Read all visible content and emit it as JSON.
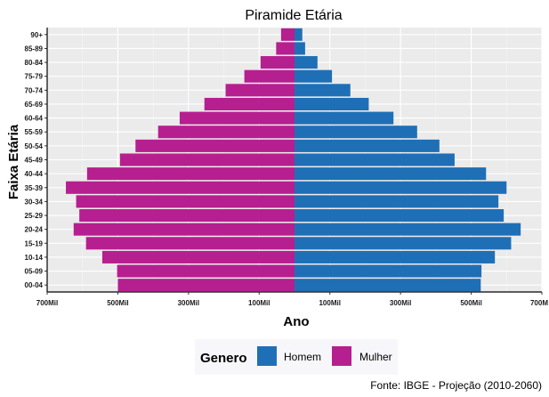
{
  "chart_data": {
    "type": "bar",
    "orientation": "horizontal",
    "title": "Piramide Etária",
    "xlabel": "Ano",
    "ylabel": "Faixa Etária",
    "caption": "Fonte: IBGE - Projeção (2010-2060)",
    "legend_title": "Genero",
    "legend_position": "bottom",
    "grid": true,
    "xlim": [
      -700000,
      700000
    ],
    "x_ticks": [
      {
        "value": -700000,
        "label": "700Mil"
      },
      {
        "value": -500000,
        "label": "500Mil"
      },
      {
        "value": -300000,
        "label": "300Mil"
      },
      {
        "value": -100000,
        "label": "100Mil"
      },
      {
        "value": 100000,
        "label": "100Mil"
      },
      {
        "value": 300000,
        "label": "300Mil"
      },
      {
        "value": 500000,
        "label": "500Mil"
      },
      {
        "value": 700000,
        "label": "700M"
      }
    ],
    "categories": [
      "00-04",
      "05-09",
      "10-14",
      "15-19",
      "20-24",
      "25-29",
      "30-34",
      "35-39",
      "40-44",
      "45-49",
      "50-54",
      "55-59",
      "60-64",
      "65-69",
      "70-74",
      "75-79",
      "80-84",
      "85-89",
      "90+"
    ],
    "series": [
      {
        "name": "Homem",
        "color": "#1f6fb6",
        "values": [
          527000,
          529000,
          567000,
          613000,
          640000,
          592000,
          577000,
          600000,
          542000,
          453000,
          410000,
          347000,
          280000,
          210000,
          158000,
          106000,
          65000,
          30000,
          22000
        ]
      },
      {
        "name": "Mulher",
        "color": "#b61f8f",
        "values": [
          -500000,
          -502000,
          -544000,
          -590000,
          -625000,
          -609000,
          -618000,
          -647000,
          -587000,
          -494000,
          -450000,
          -386000,
          -325000,
          -255000,
          -195000,
          -142000,
          -96000,
          -52000,
          -38000
        ]
      }
    ]
  }
}
